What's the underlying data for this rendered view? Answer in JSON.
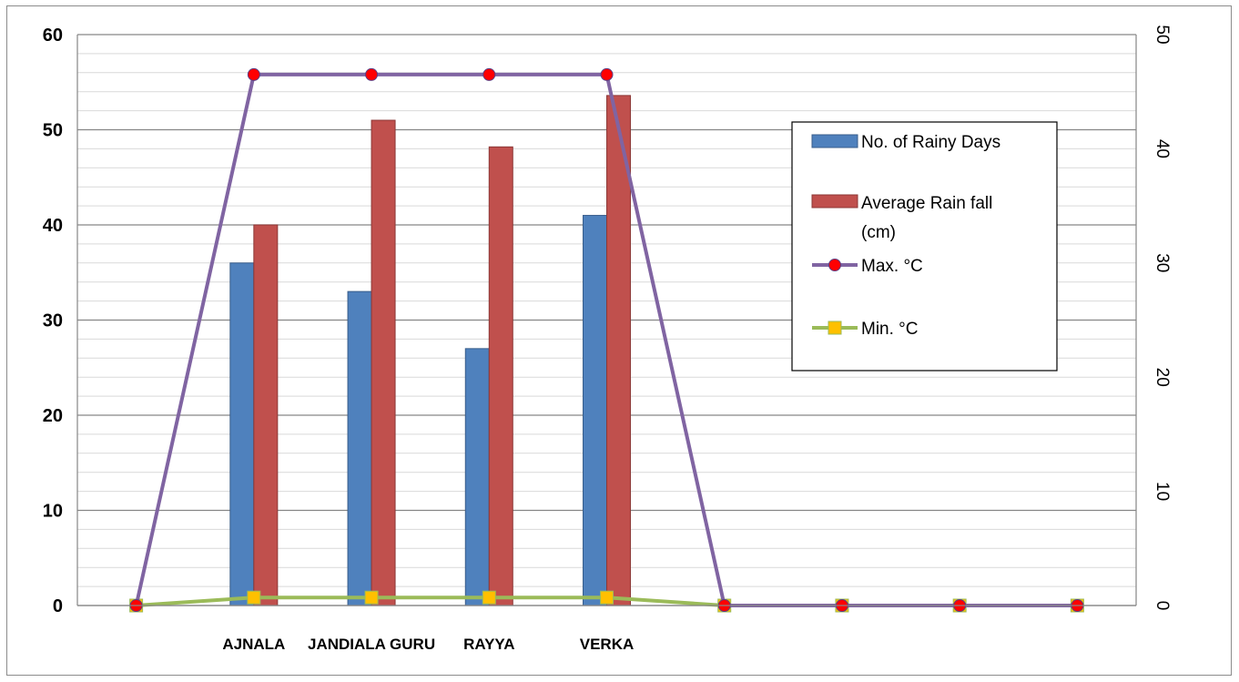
{
  "chart_data": {
    "type": "bar",
    "title": "",
    "categories": [
      "",
      "AJNALA",
      "JANDIALA GURU",
      "RAYYA",
      "VERKA",
      "",
      "",
      "",
      ""
    ],
    "primary_axis": {
      "ylim": [
        0,
        60
      ],
      "ticks": [
        0,
        10,
        20,
        30,
        40,
        50,
        60
      ]
    },
    "secondary_axis": {
      "ylim": [
        0,
        50
      ],
      "ticks": [
        0,
        10,
        20,
        30,
        40,
        50
      ]
    },
    "series": [
      {
        "name": "No. of Rainy Days",
        "type": "bar",
        "axis": "primary",
        "color": "#4f81bd",
        "values": [
          null,
          36,
          33,
          27,
          41,
          null,
          null,
          null,
          null
        ]
      },
      {
        "name": "Average Rain fall (cm)",
        "type": "bar",
        "axis": "primary",
        "color": "#c0504d",
        "values": [
          null,
          40,
          51,
          48.2,
          53.6,
          null,
          null,
          null,
          null
        ]
      },
      {
        "name": "Max. °C",
        "type": "line",
        "axis": "secondary",
        "color": "#8064a2",
        "marker": "circle",
        "marker_color": "#ff0000",
        "values": [
          0,
          46.5,
          46.5,
          46.5,
          46.5,
          0,
          0,
          0,
          0
        ]
      },
      {
        "name": "Min. °C",
        "type": "line",
        "axis": "secondary",
        "color": "#9bbb59",
        "marker": "square",
        "marker_color": "#ffc000",
        "values": [
          0,
          0.7,
          0.7,
          0.7,
          0.7,
          0,
          0,
          0,
          0
        ]
      }
    ],
    "legend": {
      "placement": "right",
      "items": [
        "No. of Rainy Days",
        "Average Rain fall",
        "(cm)",
        "Max. °C",
        "Min. °C"
      ]
    },
    "grid": true
  }
}
